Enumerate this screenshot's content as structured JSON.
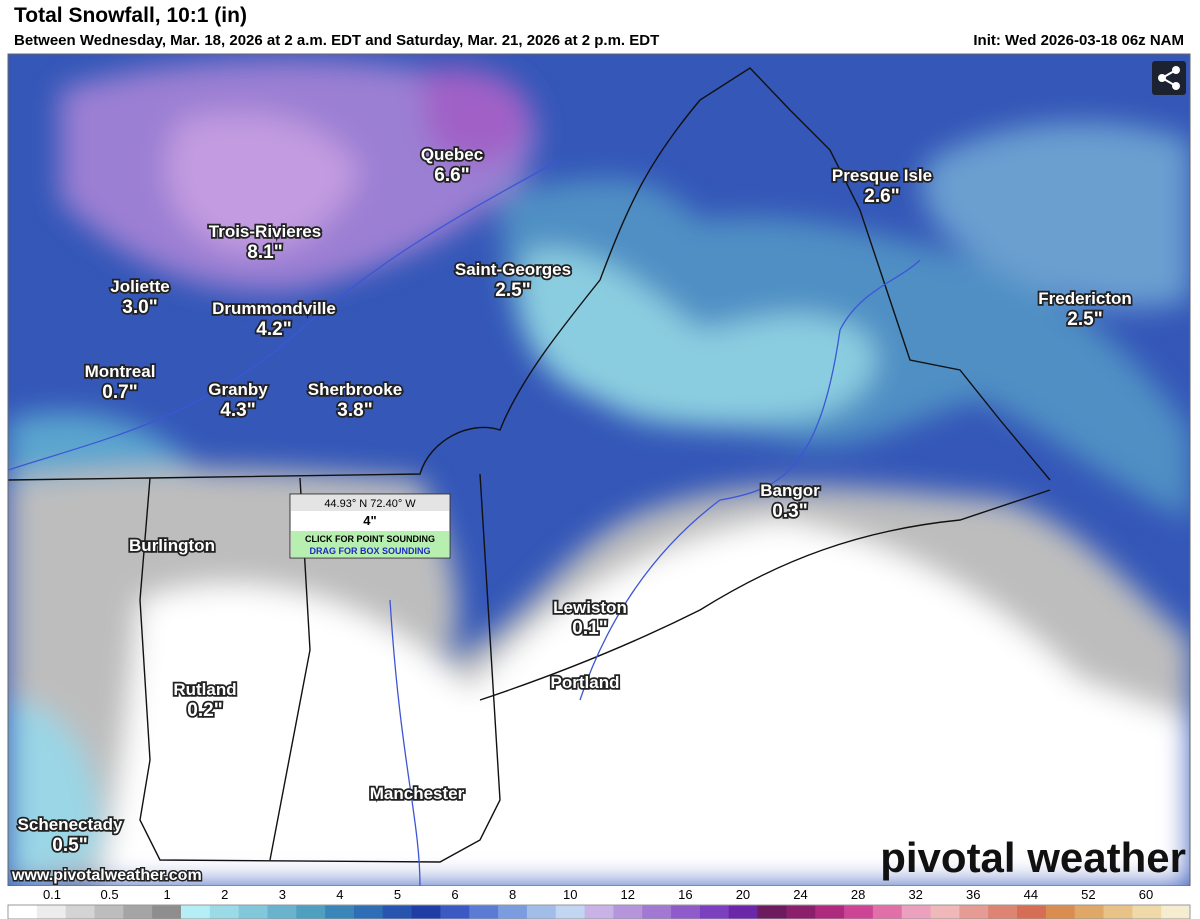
{
  "header": {
    "title": "Total Snowfall, 10:1 (in)",
    "subtitle": "Between Wednesday, Mar. 18, 2026 at 2 a.m. EDT and Saturday, Mar. 21, 2026 at 2 p.m. EDT",
    "init": "Init: Wed 2026-03-18 06z NAM"
  },
  "cities": [
    {
      "name": "Quebec",
      "amount": "6.6\""
    },
    {
      "name": "Trois-Rivieres",
      "amount": "8.1\""
    },
    {
      "name": "Joliette",
      "amount": "3.0\""
    },
    {
      "name": "Drummondville",
      "amount": "4.2\""
    },
    {
      "name": "Saint-Georges",
      "amount": "2.5\""
    },
    {
      "name": "Presque Isle",
      "amount": "2.6\""
    },
    {
      "name": "Fredericton",
      "amount": "2.5\""
    },
    {
      "name": "Montreal",
      "amount": "0.7\""
    },
    {
      "name": "Granby",
      "amount": "4.3\""
    },
    {
      "name": "Sherbrooke",
      "amount": "3.8\""
    },
    {
      "name": "Bangor",
      "amount": "0.3\""
    },
    {
      "name": "Burlington"
    },
    {
      "name": "Lewiston",
      "amount": "0.1\""
    },
    {
      "name": "Portland"
    },
    {
      "name": "Rutland",
      "amount": "0.2\""
    },
    {
      "name": "Manchester"
    },
    {
      "name": "Schenectady",
      "amount": "0.5\""
    }
  ],
  "tooltip": {
    "coords": "44.93° N 72.40° W",
    "value": "4\"",
    "click": "CLICK FOR POINT SOUNDING",
    "drag": "DRAG FOR BOX SOUNDING"
  },
  "footer": {
    "url": "www.pivotalweather.com",
    "logo": "pivotal weather"
  },
  "legend": {
    "labels": [
      "0.1",
      "0.5",
      "1",
      "2",
      "3",
      "4",
      "5",
      "6",
      "8",
      "10",
      "12",
      "16",
      "20",
      "24",
      "28",
      "32",
      "36",
      "44",
      "52",
      "60"
    ],
    "colors": [
      "#ffffff",
      "#ececec",
      "#d4d4d4",
      "#bdbdbd",
      "#a5a5a5",
      "#8e8e8e",
      "#b5eef5",
      "#9bdbe8",
      "#82c7da",
      "#6ab3cc",
      "#4f9fc0",
      "#3b86b8",
      "#2f6db5",
      "#2754ae",
      "#1f3ea5",
      "#3a59c2",
      "#5b7bd4",
      "#7b9cde",
      "#a2bde8",
      "#c3d6f1",
      "#c9b3e6",
      "#b596dd",
      "#a278d3",
      "#8f5bc9",
      "#7c3fbf",
      "#6a27a8",
      "#6b1b5e",
      "#8b1f6b",
      "#ad2a7f",
      "#cc4493",
      "#e170a8",
      "#eba0bd",
      "#f0b8b8",
      "#e69b95",
      "#de8472",
      "#d66e55",
      "#d98d50",
      "#e0a868",
      "#e8c286",
      "#efd9a8",
      "#f6ecd0"
    ]
  }
}
